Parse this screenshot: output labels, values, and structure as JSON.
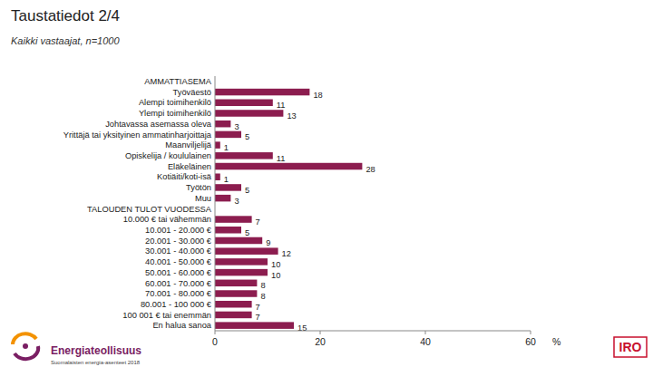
{
  "chart_data": {
    "type": "bar",
    "orientation": "horizontal",
    "title": "Taustatiedot 2/4",
    "subtitle": "Kaikki vastaajat, n=1000",
    "categories": [
      "AMMATTIASEMA",
      "Työväestö",
      "Alempi toimihenkilö",
      "Ylempi toimihenkilö",
      "Johtavassa asemassa oleva",
      "Yrittäjä tai yksityinen ammatinharjoittaja",
      "Maanviljelijä",
      "Opiskelija / koululainen",
      "Eläkeläinen",
      "Kotiäiti/koti-isä",
      "Työtön",
      "Muu",
      "TALOUDEN TULOT VUODESSA",
      "10.000 € tai vähemmän",
      "10.001 - 20.000 €",
      "20.001 - 30.000 €",
      "30.001 - 40.000 €",
      "40.001 - 50.000 €",
      "50.001 - 60.000 €",
      "60.001 - 70.000 €",
      "70.001 - 80.000 €",
      "80.001 - 100 000 €",
      "100 001 € tai enemmän",
      "En halua sanoa"
    ],
    "values": [
      null,
      18,
      11,
      13,
      3,
      5,
      1,
      11,
      28,
      1,
      5,
      3,
      null,
      7,
      5,
      9,
      12,
      10,
      10,
      8,
      8,
      7,
      7,
      15
    ],
    "color": "#8c1d4f",
    "xlim": [
      0,
      60
    ],
    "xticks": [
      0,
      20,
      40,
      60
    ],
    "xlabel": "%",
    "data_labels": true,
    "grid": false,
    "annotations": [
      "Energiateollisuus",
      "Suomalaisten energia-asenteet 2018",
      "IRO"
    ]
  }
}
